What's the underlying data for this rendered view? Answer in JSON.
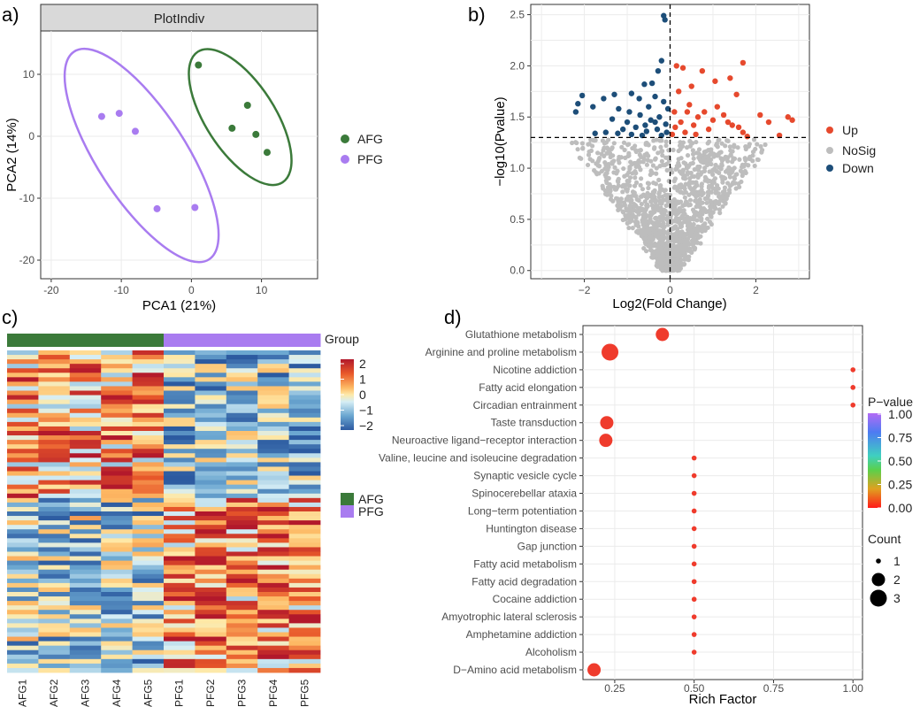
{
  "panels": {
    "a": "a)",
    "b": "b)",
    "c": "c)",
    "d": "d)"
  },
  "colors": {
    "afg": "#3b7a3a",
    "pfg": "#a97cf0",
    "up": "#e6492d",
    "nosig": "#bdbdbd",
    "down": "#1d4e79",
    "red_dot": "#ef3b2c"
  },
  "chart_data": [
    {
      "id": "pca",
      "type": "scatter",
      "title": "PlotIndiv",
      "xlabel": "PCA1 (21%)",
      "ylabel": "PCA2 (14%)",
      "xlim": [
        -21.5,
        18
      ],
      "ylim": [
        -23,
        17
      ],
      "xticks": [
        -20,
        -10,
        0,
        10
      ],
      "yticks": [
        10,
        0,
        -10,
        -20
      ],
      "series": [
        {
          "name": "AFG",
          "points": [
            [
              1,
              11.5
            ],
            [
              5.8,
              1.3
            ],
            [
              8,
              5
            ],
            [
              9.2,
              0.3
            ],
            [
              10.8,
              -2.6
            ]
          ]
        },
        {
          "name": "PFG",
          "points": [
            [
              -12.8,
              3.2
            ],
            [
              -10.3,
              3.7
            ],
            [
              -8,
              0.8
            ],
            [
              -4.9,
              -11.7
            ],
            [
              0.5,
              -11.5
            ]
          ]
        }
      ],
      "legend": [
        "AFG",
        "PFG"
      ]
    },
    {
      "id": "volcano",
      "type": "scatter",
      "xlabel": "Log2(Fold Change)",
      "ylabel": "−log10(Pvalue)",
      "xlim": [
        -3.25,
        3.25
      ],
      "ylim": [
        -0.08,
        2.6
      ],
      "xticks": [
        -2,
        0,
        2
      ],
      "xtick_labels": [
        "−2",
        "0",
        "2"
      ],
      "yticks": [
        0.0,
        0.5,
        1.0,
        1.5,
        2.0,
        2.5
      ],
      "ytick_labels": [
        "0.0",
        "0.5",
        "1.0",
        "1.5",
        "2.0",
        "2.5"
      ],
      "threshold_y": 1.3,
      "threshold_x": 0,
      "legend": [
        "Up",
        "NoSig",
        "Down"
      ],
      "up_points": [
        [
          0.15,
          2.0
        ],
        [
          0.3,
          1.98
        ],
        [
          0.5,
          1.8
        ],
        [
          0.75,
          1.95
        ],
        [
          1.05,
          1.85
        ],
        [
          1.4,
          1.88
        ],
        [
          1.7,
          2.03
        ],
        [
          0.2,
          1.75
        ],
        [
          0.45,
          1.62
        ],
        [
          0.8,
          1.55
        ],
        [
          1.25,
          1.52
        ],
        [
          1.55,
          1.72
        ],
        [
          2.1,
          1.52
        ],
        [
          2.3,
          1.45
        ],
        [
          2.75,
          1.5
        ],
        [
          2.85,
          1.47
        ],
        [
          0.1,
          1.55
        ],
        [
          0.25,
          1.45
        ],
        [
          0.55,
          1.42
        ],
        [
          0.9,
          1.38
        ],
        [
          1.1,
          1.6
        ],
        [
          1.45,
          1.42
        ],
        [
          1.7,
          1.35
        ],
        [
          2.55,
          1.32
        ],
        [
          0.35,
          1.35
        ],
        [
          0.65,
          1.5
        ],
        [
          1.0,
          1.47
        ],
        [
          1.6,
          1.4
        ],
        [
          0.12,
          1.4
        ],
        [
          0.4,
          1.55
        ],
        [
          1.35,
          1.45
        ],
        [
          0.05,
          1.33
        ],
        [
          0.6,
          1.33
        ],
        [
          1.8,
          1.31
        ]
      ],
      "down_points": [
        [
          -0.15,
          2.49
        ],
        [
          -0.12,
          2.45
        ],
        [
          -0.2,
          2.05
        ],
        [
          -0.28,
          1.95
        ],
        [
          -0.42,
          1.83
        ],
        [
          -0.6,
          1.82
        ],
        [
          -0.35,
          1.7
        ],
        [
          -0.72,
          1.68
        ],
        [
          -0.9,
          1.73
        ],
        [
          -1.3,
          1.72
        ],
        [
          -1.55,
          1.68
        ],
        [
          -2.05,
          1.71
        ],
        [
          -2.15,
          1.63
        ],
        [
          -2.2,
          1.55
        ],
        [
          -1.8,
          1.6
        ],
        [
          -1.2,
          1.58
        ],
        [
          -0.95,
          1.55
        ],
        [
          -0.5,
          1.6
        ],
        [
          -0.15,
          1.65
        ],
        [
          -0.05,
          1.58
        ],
        [
          -0.25,
          1.5
        ],
        [
          -0.45,
          1.47
        ],
        [
          -0.7,
          1.52
        ],
        [
          -1.0,
          1.45
        ],
        [
          -1.35,
          1.48
        ],
        [
          -1.1,
          1.38
        ],
        [
          -0.8,
          1.4
        ],
        [
          -0.55,
          1.36
        ],
        [
          -0.3,
          1.38
        ],
        [
          -0.1,
          1.43
        ],
        [
          -1.5,
          1.35
        ],
        [
          -0.65,
          1.32
        ],
        [
          -0.2,
          1.32
        ],
        [
          -0.9,
          1.33
        ],
        [
          -1.75,
          1.34
        ],
        [
          -0.35,
          1.45
        ],
        [
          -0.08,
          1.35
        ],
        [
          -0.58,
          1.42
        ],
        [
          -1.22,
          1.34
        ]
      ]
    },
    {
      "id": "heatmap",
      "type": "heatmap",
      "columns": [
        "AFG1",
        "AFG2",
        "AFG3",
        "AFG4",
        "AFG5",
        "PFG1",
        "PFG2",
        "PFG3",
        "PFG4",
        "PFG5"
      ],
      "group_annotation": [
        "AFG",
        "AFG",
        "AFG",
        "AFG",
        "AFG",
        "PFG",
        "PFG",
        "PFG",
        "PFG",
        "PFG"
      ],
      "annotation_title": "Group",
      "scale_ticks": [
        2,
        1,
        0,
        -1,
        -2
      ],
      "scale_tick_labels": [
        "2",
        "1",
        "0",
        "−1",
        "−2"
      ],
      "groups_legend": [
        "AFG",
        "PFG"
      ],
      "n_rows": 72
    },
    {
      "id": "enrichment",
      "type": "scatter",
      "xlabel": "Rich Factor",
      "xlim": [
        0.15,
        1.03
      ],
      "xticks": [
        0.25,
        0.5,
        0.75,
        1.0
      ],
      "xtick_labels": [
        "0.25",
        "0.50",
        "0.75",
        "1.00"
      ],
      "pathways": [
        {
          "name": "Glutathione metabolism",
          "rich": 0.4,
          "count": 2,
          "p": 0.02
        },
        {
          "name": "Arginine and proline metabolism",
          "rich": 0.235,
          "count": 3,
          "p": 0.03
        },
        {
          "name": "Nicotine addiction",
          "rich": 1.0,
          "count": 1,
          "p": 0.02
        },
        {
          "name": "Fatty acid elongation",
          "rich": 1.0,
          "count": 1,
          "p": 0.02
        },
        {
          "name": "Circadian entrainment",
          "rich": 1.0,
          "count": 1,
          "p": 0.02
        },
        {
          "name": "Taste transduction",
          "rich": 0.225,
          "count": 2,
          "p": 0.04
        },
        {
          "name": "Neuroactive ligand−receptor interaction",
          "rich": 0.222,
          "count": 2,
          "p": 0.04
        },
        {
          "name": "Valine, leucine and isoleucine degradation",
          "rich": 0.5,
          "count": 1,
          "p": 0.02
        },
        {
          "name": "Synaptic vesicle cycle",
          "rich": 0.5,
          "count": 1,
          "p": 0.02
        },
        {
          "name": "Spinocerebellar ataxia",
          "rich": 0.5,
          "count": 1,
          "p": 0.02
        },
        {
          "name": "Long−term potentiation",
          "rich": 0.5,
          "count": 1,
          "p": 0.02
        },
        {
          "name": "Huntington disease",
          "rich": 0.5,
          "count": 1,
          "p": 0.02
        },
        {
          "name": "Gap junction",
          "rich": 0.5,
          "count": 1,
          "p": 0.02
        },
        {
          "name": "Fatty acid metabolism",
          "rich": 0.5,
          "count": 1,
          "p": 0.02
        },
        {
          "name": "Fatty acid degradation",
          "rich": 0.5,
          "count": 1,
          "p": 0.02
        },
        {
          "name": "Cocaine addiction",
          "rich": 0.5,
          "count": 1,
          "p": 0.02
        },
        {
          "name": "Amyotrophic lateral sclerosis",
          "rich": 0.5,
          "count": 1,
          "p": 0.02
        },
        {
          "name": "Amphetamine addiction",
          "rich": 0.5,
          "count": 1,
          "p": 0.02
        },
        {
          "name": "Alcoholism",
          "rich": 0.5,
          "count": 1,
          "p": 0.02
        },
        {
          "name": "D−Amino acid metabolism",
          "rich": 0.185,
          "count": 2,
          "p": 0.04
        }
      ],
      "pvalue_legend": {
        "title": "P−value",
        "ticks": [
          "1.00",
          "0.75",
          "0.50",
          "0.25",
          "0.00"
        ]
      },
      "count_legend": {
        "title": "Count",
        "labels": [
          "1",
          "2",
          "3"
        ]
      }
    }
  ]
}
